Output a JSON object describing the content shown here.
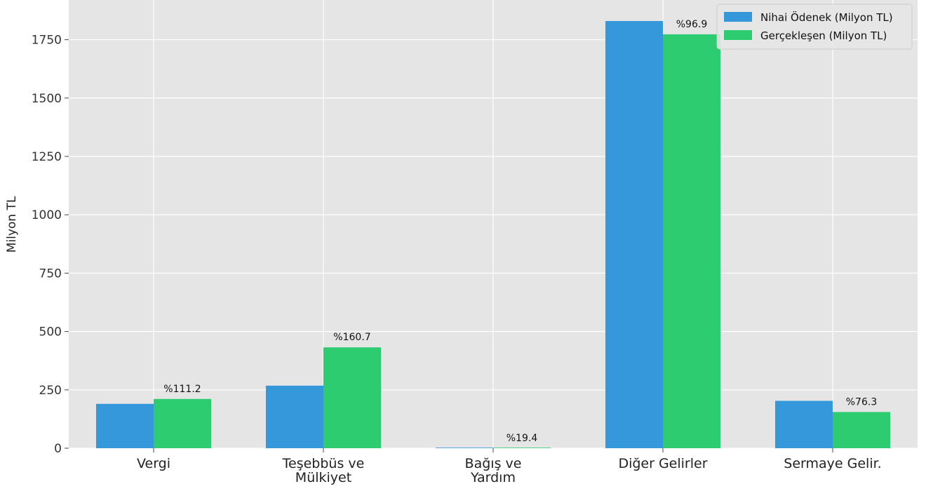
{
  "chart_data": {
    "type": "bar",
    "title": "",
    "xlabel": "",
    "ylabel": "Milyon TL",
    "ylim": [
      0,
      1920
    ],
    "yticks": [
      0,
      250,
      500,
      750,
      1000,
      1250,
      1500,
      1750
    ],
    "grid": true,
    "legend_position": "top-right",
    "categories": [
      [
        "Vergi"
      ],
      [
        "Teşebbüs ve",
        "Mülkiyet"
      ],
      [
        "Bağış ve",
        "Yardım"
      ],
      [
        "Diğer Gelirler"
      ],
      [
        "Sermaye Gelir."
      ]
    ],
    "series": [
      {
        "name": "Nihai Ödenek (Milyon TL)",
        "color": "#3498db",
        "values": [
          190,
          268,
          2,
          1830,
          203
        ]
      },
      {
        "name": "Gerçekleşen (Milyon TL)",
        "color": "#2ecc71",
        "values": [
          211,
          432,
          0.4,
          1773,
          155
        ]
      }
    ],
    "annotations": [
      "%111.2",
      "%160.7",
      "%19.4",
      "%96.9",
      "%76.3"
    ]
  }
}
